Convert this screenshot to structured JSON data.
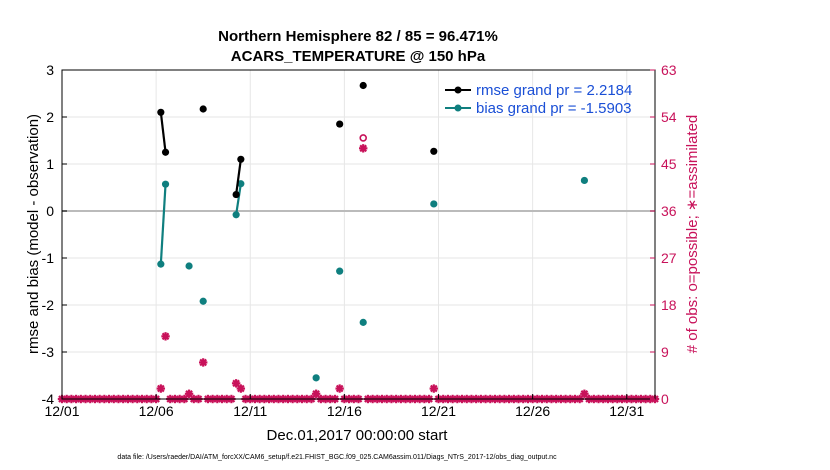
{
  "chart_data": {
    "type": "scatter",
    "title_line1": "Northern Hemisphere 82 / 85 = 96.471%",
    "title_line2": "ACARS_TEMPERATURE @ 150 hPa",
    "xlabel": "Dec.01,2017 00:00:00 start",
    "ylabel_left": "rmse and bias (model - observation)",
    "ylabel_right": "# of obs: o=possible; ∗=assimilated",
    "footer": "data file: /Users/raeder/DAI/ATM_forcXX/CAM6_setup/f.e21.FHIST_BGC.f09_025.CAM6assim.011/Diags_NTrS_2017-12/obs_diag_output.nc",
    "x_range": [
      1,
      32.5
    ],
    "x_ticks": [
      1,
      6,
      11,
      16,
      21,
      26,
      31
    ],
    "x_tick_labels": [
      "12/01",
      "12/06",
      "12/11",
      "12/16",
      "12/21",
      "12/26",
      "12/31"
    ],
    "y_left_range": [
      -4,
      3
    ],
    "y_left_ticks": [
      -4,
      -3,
      -2,
      -1,
      0,
      1,
      2,
      3
    ],
    "y_right_range": [
      0,
      63
    ],
    "y_right_ticks": [
      0,
      9,
      18,
      27,
      36,
      45,
      54,
      63
    ],
    "legend": {
      "placement": "top-right",
      "rmse_label": "rmse grand pr = 2.2184",
      "bias_label": "bias grand pr = -1.5903"
    },
    "colors": {
      "rmse": "#000000",
      "bias": "#0f7f7f",
      "obs": "#c8125a",
      "zero_line": "#bbbbbb",
      "grid": "#e6e6e6"
    },
    "rmse_segments": [
      [
        [
          6.25,
          2.1
        ],
        [
          6.5,
          1.25
        ]
      ],
      [
        [
          8.5,
          2.17
        ]
      ],
      [
        [
          10.25,
          0.35
        ],
        [
          10.5,
          1.1
        ]
      ],
      [
        [
          15.75,
          1.85
        ]
      ],
      [
        [
          17.0,
          2.67
        ]
      ],
      [
        [
          20.75,
          1.27
        ]
      ]
    ],
    "bias_segments": [
      [
        [
          6.25,
          -1.13
        ],
        [
          6.5,
          0.57
        ]
      ],
      [
        [
          7.75,
          -1.17
        ]
      ],
      [
        [
          8.5,
          -1.92
        ]
      ],
      [
        [
          10.25,
          -0.08
        ],
        [
          10.5,
          0.58
        ]
      ],
      [
        [
          14.5,
          -3.55
        ]
      ],
      [
        [
          15.75,
          -1.28
        ]
      ],
      [
        [
          17.0,
          -2.37
        ]
      ],
      [
        [
          20.75,
          0.15
        ]
      ],
      [
        [
          28.75,
          0.65
        ]
      ]
    ],
    "obs_possible": [
      [
        17.0,
        50
      ]
    ],
    "obs_assimilated_nonzero": [
      [
        6.25,
        2
      ],
      [
        6.5,
        12
      ],
      [
        7.75,
        1
      ],
      [
        8.5,
        7
      ],
      [
        10.25,
        3
      ],
      [
        10.5,
        2
      ],
      [
        14.5,
        1
      ],
      [
        15.75,
        2
      ],
      [
        17.0,
        48
      ],
      [
        20.75,
        2
      ],
      [
        28.75,
        1
      ]
    ],
    "obs_time_step_days": 0.25
  }
}
